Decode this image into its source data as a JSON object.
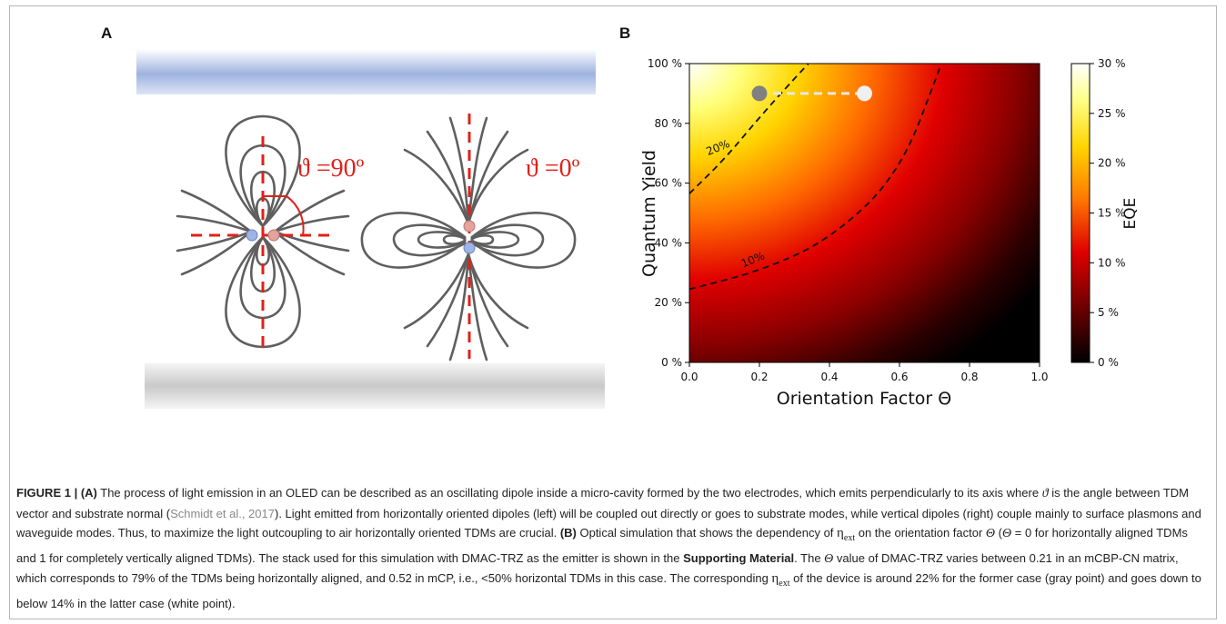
{
  "panel_a": {
    "label": "A",
    "angle_left": "ϑ =90º",
    "angle_right": "ϑ =0º",
    "colors": {
      "top_electrode": "#9fb3e0",
      "bottom_electrode": "#cfcfcf",
      "field_lines": "#5f5f5f",
      "axis_dash": "#e0201a",
      "charge_negative": "#9db4e6",
      "charge_positive": "#e6a39d"
    },
    "icons": [
      "dipole-field-horizontal-icon",
      "dipole-field-vertical-icon"
    ]
  },
  "panel_b": {
    "label": "B",
    "chart_data": {
      "type": "heatmap",
      "title": "",
      "xlabel": "Orientation Factor Θ",
      "ylabel": "Quantum Yield",
      "xlim": [
        0.0,
        1.0
      ],
      "ylim": [
        0,
        100
      ],
      "x_ticks": [
        "0.0",
        "0.2",
        "0.4",
        "0.6",
        "0.8",
        "1.0"
      ],
      "y_ticks": [
        "0 %",
        "20 %",
        "40 %",
        "60 %",
        "80 %",
        "100 %"
      ],
      "colorbar": {
        "label": "EQE",
        "range": [
          0,
          30
        ],
        "ticks": [
          "0 %",
          "5 %",
          "10 %",
          "15 %",
          "20 %",
          "25 %",
          "30 %"
        ],
        "colormap": "hot"
      },
      "contours": [
        {
          "label": "10%",
          "level": 10,
          "points": [
            [
              0.0,
              24.5
            ],
            [
              0.2,
              30.5
            ],
            [
              0.4,
              41
            ],
            [
              0.6,
              63
            ],
            [
              0.72,
              100
            ]
          ]
        },
        {
          "label": "20%",
          "level": 20,
          "points": [
            [
              0.0,
              56.5
            ],
            [
              0.1,
              68
            ],
            [
              0.2,
              82
            ],
            [
              0.3,
              95
            ],
            [
              0.34,
              100
            ]
          ]
        }
      ],
      "points": [
        {
          "x": 0.2,
          "y": 90,
          "color": "#808080"
        },
        {
          "x": 0.5,
          "y": 90,
          "color": "#f0f0f0"
        }
      ],
      "connector_style": "dashed",
      "grid": false
    }
  },
  "caption": {
    "fig": "FIGURE 1 | ",
    "part_a_label": "(A)",
    "t1": " The process of light emission in an OLED can be described as an oscillating dipole inside a micro-cavity formed by the two electrodes, which emits perpendicularly to its axis where ",
    "var_theta": "ϑ",
    "t2": " is the angle between TDM vector and substrate normal (",
    "cite": "Schmidt et al., 2017",
    "t3": "). Light emitted from horizontally oriented dipoles (left) will be coupled out directly or goes to substrate modes, while vertical dipoles (right) couple mainly to surface plasmons and waveguide modes. Thus, to maximize the light outcoupling to air horizontally oriented TDMs are crucial. ",
    "part_b_label": "(B)",
    "t4": " Optical simulation that shows the dependency of ",
    "eta": "η",
    "eta_sub": "ext",
    "t5": " on the orientation factor ",
    "theta": "Θ",
    "t6": " (",
    "theta2": "Θ",
    "t7": " = 0 for horizontally aligned TDMs and 1 for completely vertically aligned TDMs). The stack used for this simulation with DMAC-TRZ as the emitter is shown in the ",
    "supp": "Supporting Material",
    "t8": ". The ",
    "theta3": "Θ",
    "t9": " value of DMAC-TRZ varies between 0.21 in an mCBP-CN matrix, which corresponds to 79% of the TDMs being horizontally aligned, and 0.52 in mCP, i.e., <50% horizontal TDMs in this case. The corresponding ",
    "eta2": "η",
    "eta2_sub": "ext",
    "t10": " of the device is around 22% for the former case (gray point) and goes down to below 14% in the latter case (white point)."
  }
}
